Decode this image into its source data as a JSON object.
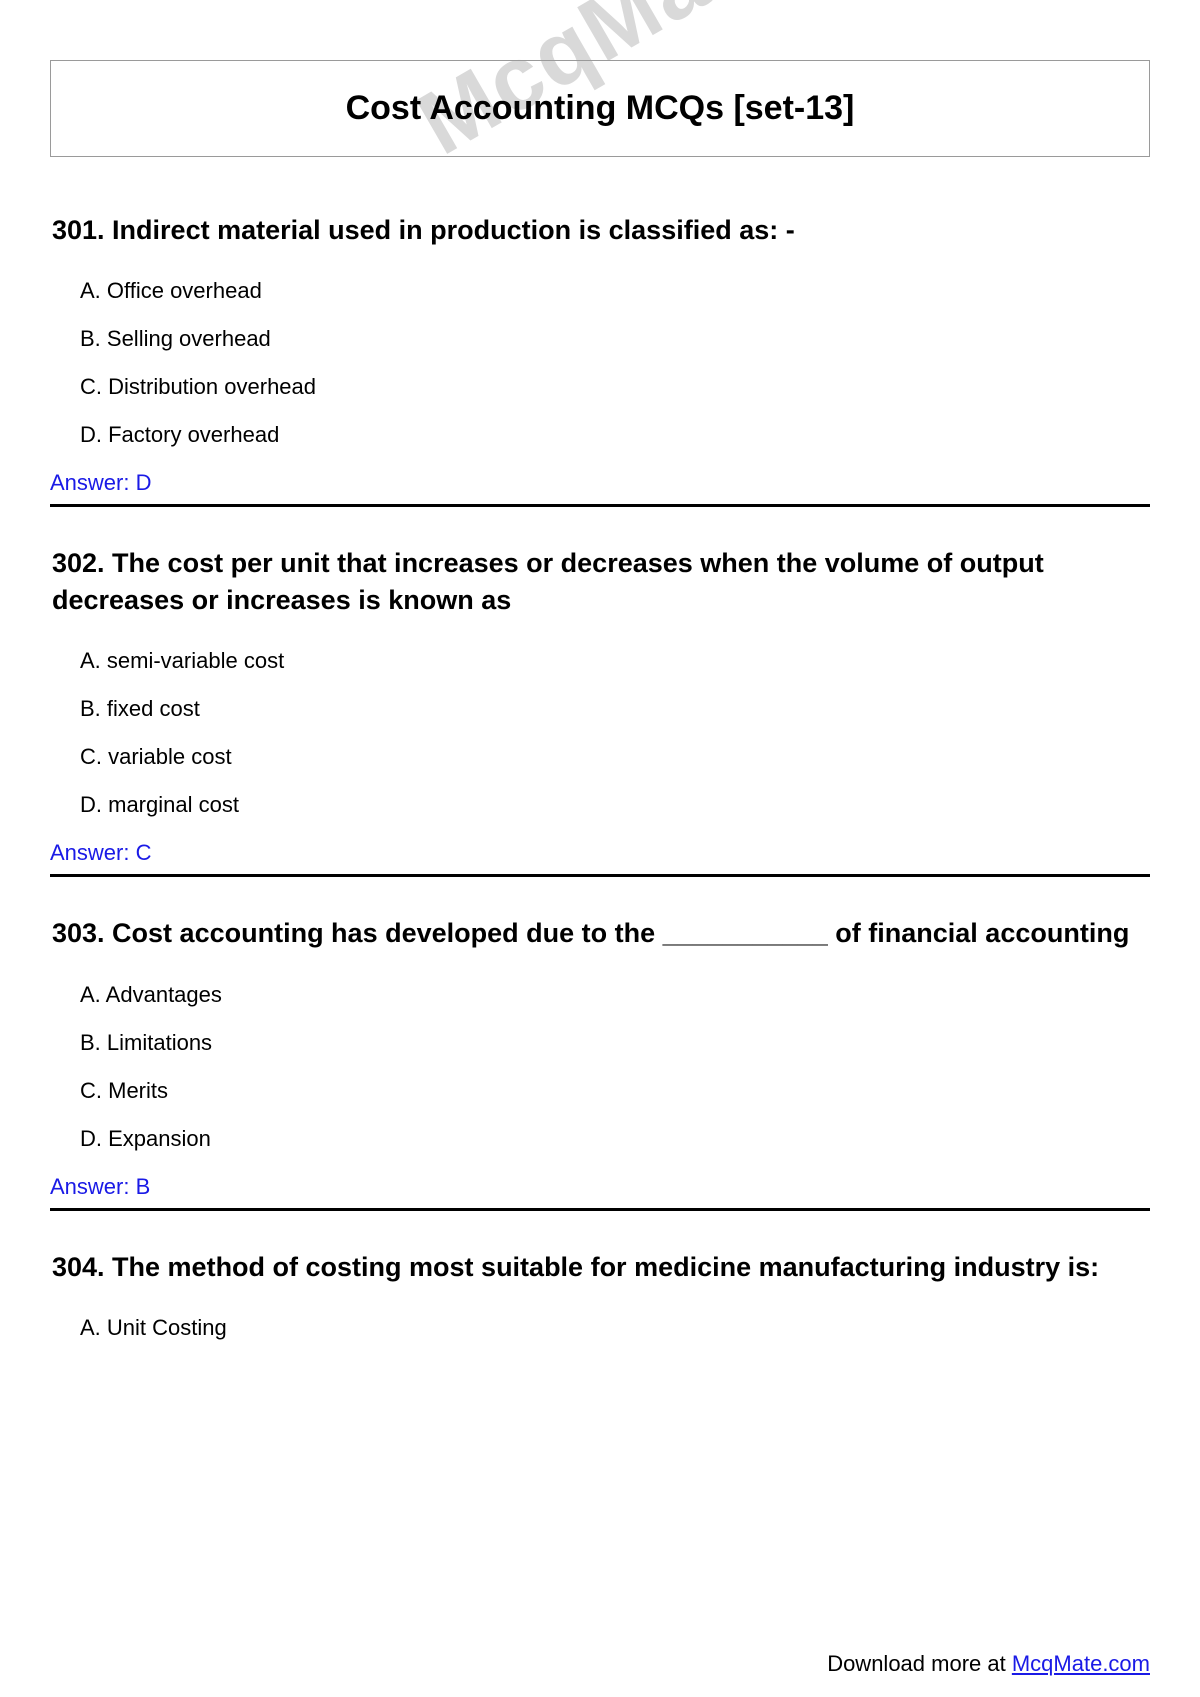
{
  "watermark_text": "McqMate",
  "page_title": "Cost Accounting MCQs [set-13]",
  "colors": {
    "text": "#000000",
    "answer": "#1a1ae6",
    "link": "#1a1ae6",
    "watermark": "#d9d9d9",
    "border": "#9a9a9a",
    "divider": "#000000",
    "background": "#ffffff"
  },
  "typography": {
    "title_fontsize": 34,
    "question_fontsize": 27,
    "option_fontsize": 22,
    "answer_fontsize": 22,
    "footer_fontsize": 22,
    "font_family": "Arial"
  },
  "questions": [
    {
      "number": "301",
      "text": "301. Indirect material used in production is classified as: -",
      "options": {
        "A": "A. Office overhead",
        "B": "B. Selling overhead",
        "C": "C. Distribution overhead",
        "D": "D. Factory overhead"
      },
      "answer": "Answer: D",
      "show_divider": true
    },
    {
      "number": "302",
      "text": "302. The cost per unit that increases or decreases when the volume of output decreases or increases is known as",
      "options": {
        "A": "A. semi-variable cost",
        "B": "B. fixed cost",
        "C": "C. variable cost",
        "D": "D. marginal cost"
      },
      "answer": "Answer: C",
      "show_divider": true
    },
    {
      "number": "303",
      "text": "303. Cost accounting has developed due to the ___________ of financial accounting",
      "options": {
        "A": "A. Advantages",
        "B": "B. Limitations",
        "C": "C. Merits",
        "D": "D. Expansion"
      },
      "answer": "Answer: B",
      "show_divider": true
    },
    {
      "number": "304",
      "text": "304. The method of costing most suitable for medicine manufacturing industry is:",
      "options": {
        "A": "A. Unit Costing"
      },
      "answer": null,
      "show_divider": false
    }
  ],
  "footer": {
    "prefix": "Download more at ",
    "link_text": "McqMate.com"
  }
}
